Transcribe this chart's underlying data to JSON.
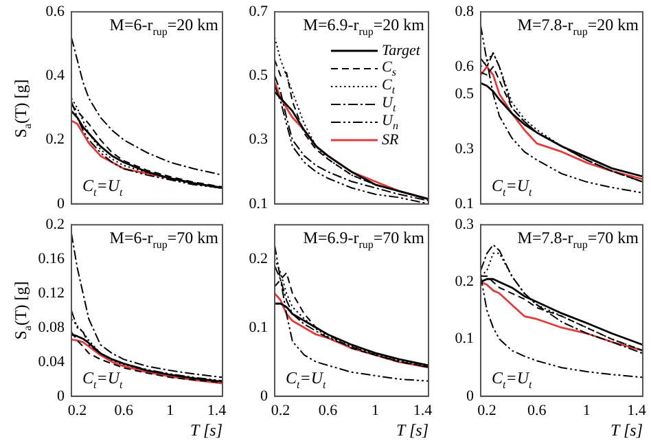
{
  "chart_data": [
    {
      "type": "line",
      "ylabel": "S$_{a}$(T) [g]",
      "annotations": [
        "M=6-r$_{rup}$=20 km",
        "C$_{t}$=U$_{t}$"
      ],
      "x": [
        0.15,
        0.2,
        0.25,
        0.3,
        0.4,
        0.5,
        0.6,
        0.8,
        1.0,
        1.2,
        1.45
      ],
      "xlim": [
        0.15,
        1.45
      ],
      "xticks": [
        0.2,
        0.6,
        1,
        1.4
      ],
      "ylim": [
        0,
        0.6
      ],
      "yticks": [
        0,
        0.2,
        0.4,
        0.6
      ],
      "tick_labels": "y",
      "grid": false,
      "legend": false,
      "series": [
        {
          "color": "#000000",
          "line_style": "solid",
          "values": [
            0.29,
            0.27,
            0.24,
            0.22,
            0.18,
            0.15,
            0.13,
            0.1,
            0.08,
            0.065,
            0.05
          ]
        },
        {
          "color": "#000000",
          "line_style": "dashed",
          "values": [
            0.31,
            0.29,
            0.27,
            0.25,
            0.2,
            0.16,
            0.135,
            0.105,
            0.085,
            0.068,
            0.053
          ]
        },
        {
          "color": "#000000",
          "line_style": "dotted",
          "values": [
            0.33,
            0.3,
            0.26,
            0.22,
            0.17,
            0.14,
            0.12,
            0.098,
            0.078,
            0.063,
            0.048
          ]
        },
        {
          "color": "#000000",
          "line_style": "dashdot",
          "values": [
            0.52,
            0.45,
            0.38,
            0.33,
            0.27,
            0.23,
            0.2,
            0.16,
            0.13,
            0.11,
            0.09
          ]
        },
        {
          "color": "#000000",
          "line_style": "dashdotdot",
          "values": [
            0.32,
            0.27,
            0.23,
            0.2,
            0.16,
            0.13,
            0.11,
            0.09,
            0.075,
            0.06,
            0.05
          ]
        },
        {
          "color": "#e03c3c",
          "line_style": "solid",
          "values": [
            0.26,
            0.25,
            0.22,
            0.19,
            0.15,
            0.13,
            0.11,
            0.095,
            0.08,
            0.065,
            0.05
          ]
        }
      ]
    },
    {
      "type": "line",
      "annotations": [
        "M=6.9-r$_{rup}$=20 km"
      ],
      "x": [
        0.15,
        0.2,
        0.25,
        0.3,
        0.4,
        0.5,
        0.6,
        0.8,
        1.0,
        1.2,
        1.45
      ],
      "xlim": [
        0.15,
        1.45
      ],
      "xticks": [
        0.2,
        0.6,
        1,
        1.4
      ],
      "ylim": [
        0.1,
        0.7
      ],
      "yticks": [
        0.1,
        0.3,
        0.5,
        0.7
      ],
      "tick_labels": "y",
      "grid": false,
      "legend": "right",
      "series": [
        {
          "name": "Target",
          "color": "#000000",
          "line_style": "solid",
          "values": [
            0.45,
            0.43,
            0.41,
            0.39,
            0.33,
            0.28,
            0.25,
            0.2,
            0.16,
            0.14,
            0.115
          ]
        },
        {
          "name": "C$_{s}$",
          "color": "#000000",
          "line_style": "dashed",
          "values": [
            0.55,
            0.5,
            0.51,
            0.42,
            0.32,
            0.27,
            0.24,
            0.19,
            0.16,
            0.14,
            0.115
          ]
        },
        {
          "name": "C$_{t}$",
          "color": "#000000",
          "line_style": "dotted",
          "values": [
            0.62,
            0.55,
            0.5,
            0.45,
            0.35,
            0.28,
            0.24,
            0.19,
            0.16,
            0.14,
            0.115
          ]
        },
        {
          "name": "U$_{t}$",
          "color": "#000000",
          "line_style": "dashdot",
          "values": [
            0.5,
            0.45,
            0.37,
            0.3,
            0.25,
            0.22,
            0.2,
            0.17,
            0.15,
            0.13,
            0.11
          ]
        },
        {
          "name": "U$_{n}$",
          "color": "#000000",
          "line_style": "dashdotdot",
          "values": [
            0.47,
            0.42,
            0.35,
            0.28,
            0.23,
            0.2,
            0.18,
            0.15,
            0.13,
            0.12,
            0.1
          ]
        },
        {
          "name": "SR",
          "color": "#e03c3c",
          "line_style": "solid",
          "values": [
            0.48,
            0.43,
            0.4,
            0.37,
            0.33,
            0.28,
            0.25,
            0.2,
            0.17,
            0.14,
            0.115
          ]
        }
      ]
    },
    {
      "type": "line",
      "annotations": [
        "M=7.8-r$_{rup}$=20 km",
        "C$_{t}$=U$_{t}$"
      ],
      "x": [
        0.15,
        0.2,
        0.25,
        0.3,
        0.4,
        0.5,
        0.6,
        0.8,
        1.0,
        1.2,
        1.45
      ],
      "xlim": [
        0.15,
        1.45
      ],
      "xticks": [
        0.2,
        0.6,
        1,
        1.4
      ],
      "ylim": [
        0.1,
        0.8
      ],
      "yticks": [
        0.1,
        0.3,
        0.5,
        0.6,
        0.8
      ],
      "tick_labels": "y",
      "grid": false,
      "legend": false,
      "series": [
        {
          "color": "#000000",
          "line_style": "solid",
          "values": [
            0.54,
            0.53,
            0.51,
            0.48,
            0.43,
            0.39,
            0.36,
            0.31,
            0.27,
            0.23,
            0.2
          ]
        },
        {
          "color": "#000000",
          "line_style": "dashed",
          "values": [
            0.58,
            0.57,
            0.6,
            0.55,
            0.45,
            0.4,
            0.36,
            0.31,
            0.26,
            0.22,
            0.18
          ]
        },
        {
          "color": "#000000",
          "line_style": "dotted",
          "values": [
            0.6,
            0.62,
            0.65,
            0.6,
            0.47,
            0.41,
            0.37,
            0.31,
            0.26,
            0.22,
            0.18
          ]
        },
        {
          "color": "#000000",
          "line_style": "dashdot",
          "values": [
            0.63,
            0.6,
            0.65,
            0.6,
            0.45,
            0.4,
            0.36,
            0.31,
            0.26,
            0.22,
            0.18
          ]
        },
        {
          "color": "#000000",
          "line_style": "dashdotdot",
          "values": [
            0.75,
            0.62,
            0.5,
            0.42,
            0.34,
            0.29,
            0.26,
            0.21,
            0.18,
            0.16,
            0.14
          ]
        },
        {
          "color": "#e03c3c",
          "line_style": "solid",
          "values": [
            0.57,
            0.6,
            0.57,
            0.5,
            0.43,
            0.37,
            0.32,
            0.29,
            0.25,
            0.22,
            0.19
          ]
        }
      ]
    },
    {
      "type": "line",
      "ylabel": "S$_{a}$(T) [g]",
      "xlabel": "T [s]",
      "annotations": [
        "M=6-r$_{rup}$=70 km",
        "C$_{t}$=U$_{t}$"
      ],
      "x": [
        0.15,
        0.2,
        0.25,
        0.3,
        0.4,
        0.5,
        0.6,
        0.8,
        1.0,
        1.2,
        1.45
      ],
      "xlim": [
        0.15,
        1.45
      ],
      "xticks": [
        0.2,
        0.6,
        1,
        1.4
      ],
      "ylim": [
        0,
        0.2
      ],
      "yticks": [
        0,
        0.04,
        0.08,
        0.12,
        0.16,
        0.2
      ],
      "grid": false,
      "legend": false,
      "series": [
        {
          "color": "#000000",
          "line_style": "solid",
          "values": [
            0.072,
            0.07,
            0.067,
            0.062,
            0.05,
            0.043,
            0.038,
            0.03,
            0.025,
            0.021,
            0.017
          ]
        },
        {
          "color": "#000000",
          "line_style": "dashed",
          "values": [
            0.075,
            0.065,
            0.058,
            0.05,
            0.043,
            0.038,
            0.033,
            0.027,
            0.022,
            0.019,
            0.016
          ]
        },
        {
          "color": "#000000",
          "line_style": "dotted",
          "values": [
            0.09,
            0.082,
            0.075,
            0.065,
            0.05,
            0.042,
            0.037,
            0.03,
            0.025,
            0.021,
            0.017
          ]
        },
        {
          "color": "#000000",
          "line_style": "dashdot",
          "values": [
            0.19,
            0.15,
            0.12,
            0.09,
            0.06,
            0.05,
            0.043,
            0.035,
            0.03,
            0.026,
            0.022
          ]
        },
        {
          "color": "#000000",
          "line_style": "dashdotdot",
          "values": [
            0.1,
            0.08,
            0.075,
            0.06,
            0.05,
            0.043,
            0.038,
            0.031,
            0.026,
            0.022,
            0.018
          ]
        },
        {
          "color": "#e03c3c",
          "line_style": "solid",
          "values": [
            0.066,
            0.065,
            0.063,
            0.058,
            0.048,
            0.04,
            0.035,
            0.028,
            0.023,
            0.019,
            0.015
          ]
        }
      ]
    },
    {
      "type": "line",
      "xlabel": "T [s]",
      "annotations": [
        "M=6.9-r$_{rup}$=70 km",
        "C$_{t}$=U$_{t}$"
      ],
      "x": [
        0.15,
        0.2,
        0.25,
        0.3,
        0.4,
        0.5,
        0.6,
        0.8,
        1.0,
        1.2,
        1.45
      ],
      "xlim": [
        0.15,
        1.45
      ],
      "xticks": [
        0.2,
        0.6,
        1,
        1.4
      ],
      "ylim": [
        0,
        0.25
      ],
      "yticks": [
        0,
        0.1,
        0.2
      ],
      "grid": false,
      "legend": false,
      "series": [
        {
          "color": "#000000",
          "line_style": "solid",
          "values": [
            0.135,
            0.135,
            0.13,
            0.12,
            0.11,
            0.1,
            0.09,
            0.075,
            0.063,
            0.054,
            0.045
          ]
        },
        {
          "color": "#000000",
          "line_style": "dashed",
          "values": [
            0.16,
            0.17,
            0.18,
            0.15,
            0.12,
            0.1,
            0.09,
            0.07,
            0.06,
            0.05,
            0.043
          ]
        },
        {
          "color": "#000000",
          "line_style": "dotted",
          "values": [
            0.2,
            0.18,
            0.15,
            0.13,
            0.113,
            0.098,
            0.087,
            0.073,
            0.061,
            0.052,
            0.044
          ]
        },
        {
          "color": "#000000",
          "line_style": "dashdot",
          "values": [
            0.19,
            0.17,
            0.14,
            0.12,
            0.105,
            0.095,
            0.085,
            0.072,
            0.06,
            0.051,
            0.042
          ]
        },
        {
          "color": "#000000",
          "line_style": "dashdotdot",
          "values": [
            0.22,
            0.17,
            0.12,
            0.08,
            0.06,
            0.05,
            0.045,
            0.035,
            0.03,
            0.025,
            0.022
          ]
        },
        {
          "color": "#e03c3c",
          "line_style": "solid",
          "values": [
            0.15,
            0.14,
            0.12,
            0.11,
            0.1,
            0.09,
            0.085,
            0.07,
            0.06,
            0.05,
            0.042
          ]
        }
      ]
    },
    {
      "type": "line",
      "xlabel": "T [s]",
      "annotations": [
        "M=7.8-r$_{rup}$=70 km",
        "C$_{t}$=U$_{t}$"
      ],
      "x": [
        0.15,
        0.2,
        0.25,
        0.3,
        0.4,
        0.5,
        0.6,
        0.8,
        1.0,
        1.2,
        1.45
      ],
      "xlim": [
        0.15,
        1.45
      ],
      "xticks": [
        0.2,
        0.6,
        1,
        1.4
      ],
      "ylim": [
        0,
        0.3
      ],
      "yticks": [
        0,
        0.1,
        0.2,
        0.3
      ],
      "grid": false,
      "legend": false,
      "series": [
        {
          "color": "#000000",
          "line_style": "solid",
          "values": [
            0.2,
            0.205,
            0.205,
            0.2,
            0.19,
            0.175,
            0.165,
            0.145,
            0.128,
            0.11,
            0.09
          ]
        },
        {
          "color": "#000000",
          "line_style": "dashed",
          "values": [
            0.21,
            0.21,
            0.2,
            0.19,
            0.18,
            0.17,
            0.155,
            0.14,
            0.12,
            0.1,
            0.08
          ]
        },
        {
          "color": "#000000",
          "line_style": "dotted",
          "values": [
            0.21,
            0.22,
            0.25,
            0.25,
            0.21,
            0.18,
            0.16,
            0.14,
            0.12,
            0.1,
            0.08
          ]
        },
        {
          "color": "#000000",
          "line_style": "dashdot",
          "values": [
            0.22,
            0.25,
            0.265,
            0.255,
            0.21,
            0.18,
            0.16,
            0.13,
            0.11,
            0.095,
            0.075
          ]
        },
        {
          "color": "#000000",
          "line_style": "dashdotdot",
          "values": [
            0.21,
            0.15,
            0.12,
            0.1,
            0.08,
            0.07,
            0.062,
            0.05,
            0.043,
            0.038,
            0.033
          ]
        },
        {
          "color": "#e03c3c",
          "line_style": "solid",
          "values": [
            0.2,
            0.195,
            0.185,
            0.18,
            0.16,
            0.14,
            0.135,
            0.12,
            0.11,
            0.095,
            0.08
          ]
        }
      ]
    }
  ]
}
